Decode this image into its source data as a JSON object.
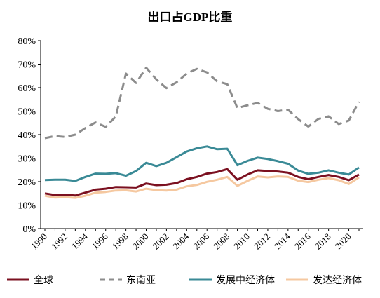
{
  "chart_data": {
    "type": "line",
    "title": "出口占GDP比重",
    "xlabel": "",
    "ylabel": "",
    "ylim": [
      0,
      80
    ],
    "y_ticks": [
      0,
      10,
      20,
      30,
      40,
      50,
      60,
      70,
      80
    ],
    "y_tick_labels": [
      "0%",
      "10%",
      "20%",
      "30%",
      "40%",
      "50%",
      "60%",
      "70%",
      "80%"
    ],
    "x_tick_labels": [
      "1990",
      "1992",
      "1994",
      "1996",
      "1998",
      "2000",
      "2002",
      "2004",
      "2006",
      "2008",
      "2010",
      "2012",
      "2014",
      "2016",
      "2018",
      "2020"
    ],
    "x": [
      1990,
      1991,
      1992,
      1993,
      1994,
      1995,
      1996,
      1997,
      1998,
      1999,
      2000,
      2001,
      2002,
      2003,
      2004,
      2005,
      2006,
      2007,
      2008,
      2009,
      2010,
      2011,
      2012,
      2013,
      2014,
      2015,
      2016,
      2017,
      2018,
      2019,
      2020,
      2021
    ],
    "grid": false,
    "legend_position": "bottom",
    "series": [
      {
        "name": "全球",
        "color": "#7b1020",
        "dash": "solid",
        "values": [
          15.0,
          14.3,
          14.4,
          14.1,
          15.3,
          16.6,
          17.0,
          17.7,
          17.6,
          17.5,
          19.2,
          18.5,
          18.7,
          19.4,
          21.0,
          22.0,
          23.4,
          24.1,
          25.3,
          20.8,
          23.0,
          24.8,
          24.5,
          24.3,
          23.8,
          22.0,
          21.0,
          22.0,
          22.8,
          22.0,
          20.6,
          23.0
        ]
      },
      {
        "name": "东南亚",
        "color": "#8c8c8c",
        "dash": "dashed",
        "values": [
          38.5,
          39.4,
          39.0,
          40.0,
          42.8,
          45.2,
          43.3,
          47.7,
          66.0,
          62.0,
          68.5,
          63.5,
          59.8,
          62.3,
          66.0,
          68.0,
          66.5,
          62.7,
          61.5,
          51.3,
          52.5,
          53.5,
          51.0,
          50.0,
          50.6,
          46.6,
          43.4,
          46.7,
          47.8,
          44.5,
          46.0,
          54.0
        ]
      },
      {
        "name": "发展中经济体",
        "color": "#3a8a96",
        "dash": "solid",
        "values": [
          20.7,
          20.8,
          20.8,
          20.3,
          22.0,
          23.4,
          23.3,
          23.6,
          22.5,
          24.5,
          28.0,
          26.6,
          28.0,
          30.4,
          32.8,
          34.2,
          35.0,
          33.8,
          34.0,
          27.0,
          28.8,
          30.2,
          29.6,
          28.7,
          27.6,
          24.7,
          23.3,
          23.8,
          24.8,
          23.8,
          23.0,
          26.0
        ]
      },
      {
        "name": "发达经济体",
        "color": "#f5c8a0",
        "dash": "solid",
        "values": [
          14.0,
          13.2,
          13.4,
          13.1,
          14.0,
          15.3,
          15.6,
          16.2,
          16.3,
          15.8,
          17.0,
          16.4,
          16.2,
          16.6,
          18.0,
          18.6,
          19.9,
          20.8,
          22.0,
          18.2,
          20.3,
          22.2,
          21.8,
          22.2,
          22.0,
          20.4,
          19.8,
          20.8,
          21.5,
          20.6,
          19.0,
          21.8
        ]
      }
    ]
  }
}
